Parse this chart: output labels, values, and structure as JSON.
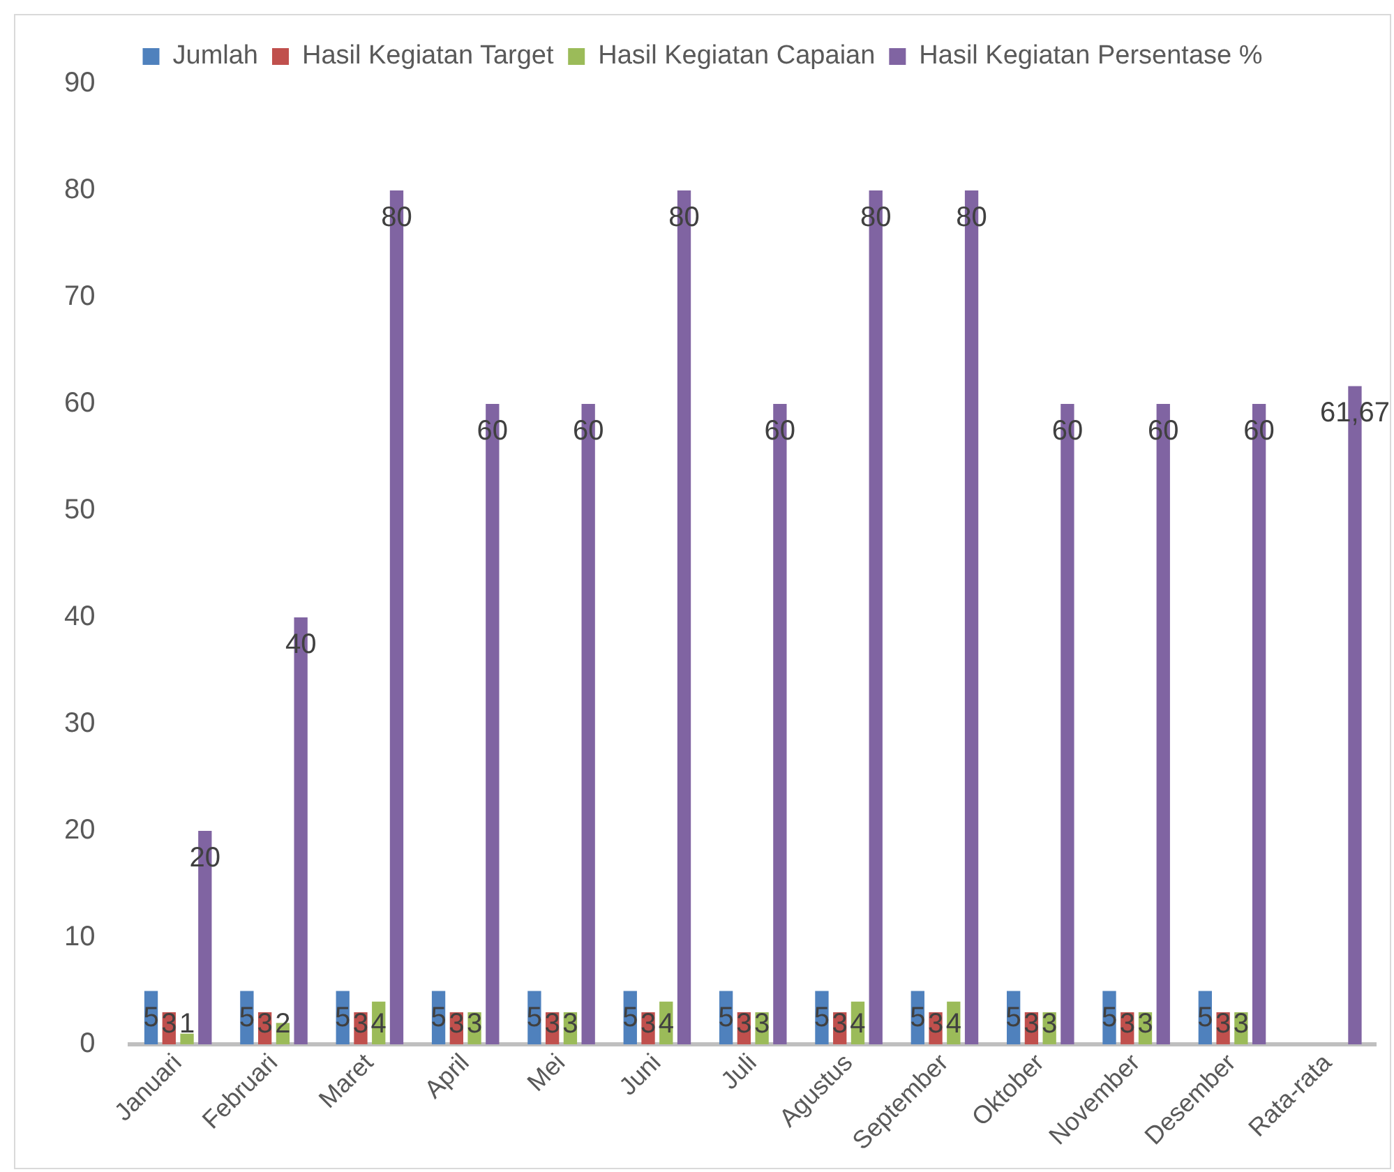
{
  "chart_data": {
    "type": "bar",
    "categories": [
      "Januari",
      "Februari",
      "Maret",
      "April",
      "Mei",
      "Juni",
      "Juli",
      "Agustus",
      "September",
      "Oktober",
      "November",
      "Desember",
      "Rata-rata"
    ],
    "series": [
      {
        "name": "Jumlah",
        "color": "#4f81bd",
        "values": [
          5,
          5,
          5,
          5,
          5,
          5,
          5,
          5,
          5,
          5,
          5,
          5,
          null
        ],
        "value_labels": [
          "5",
          "5",
          "5",
          "5",
          "5",
          "5",
          "5",
          "5",
          "5",
          "5",
          "5",
          "5",
          null
        ]
      },
      {
        "name": "Hasil Kegiatan Target",
        "color": "#c0504d",
        "values": [
          3,
          3,
          3,
          3,
          3,
          3,
          3,
          3,
          3,
          3,
          3,
          3,
          null
        ],
        "value_labels": [
          "3",
          "3",
          "3",
          "3",
          "3",
          "3",
          "3",
          "3",
          "3",
          "3",
          "3",
          "3",
          null
        ]
      },
      {
        "name": "Hasil Kegiatan Capaian",
        "color": "#9bbb59",
        "values": [
          1,
          2,
          4,
          3,
          3,
          4,
          3,
          4,
          4,
          3,
          3,
          3,
          null
        ],
        "value_labels": [
          "1",
          "2",
          "4",
          "3",
          "3",
          "4",
          "3",
          "4",
          "4",
          "3",
          "3",
          "3",
          null
        ]
      },
      {
        "name": "Hasil Kegiatan Persentase %",
        "color": "#8064a2",
        "values": [
          20,
          40,
          80,
          60,
          60,
          80,
          60,
          80,
          80,
          60,
          60,
          60,
          61.67
        ],
        "value_labels": [
          "20",
          "40",
          "80",
          "60",
          "60",
          "80",
          "60",
          "80",
          "80",
          "60",
          "60",
          "60",
          "61,67"
        ]
      }
    ],
    "ylim": [
      0,
      90
    ],
    "yticks": [
      0,
      10,
      20,
      30,
      40,
      50,
      60,
      70,
      80,
      90
    ],
    "grid": false,
    "legend": "top"
  }
}
